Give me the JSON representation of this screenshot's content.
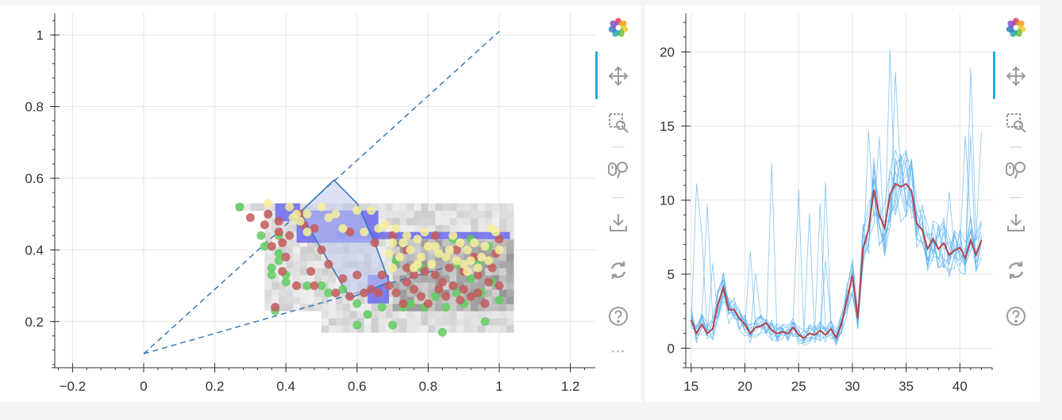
{
  "colors": {
    "grid": "#e5e5e5",
    "axis": "#333333",
    "dashed": "#3c78b4",
    "polygon_fill": "#bfc9ee",
    "polygon_stroke": "#3c78b4",
    "raster_blue": "#6a6af0",
    "dot_green": "#62cc62",
    "dot_red": "#c35c5c",
    "dot_yellow": "#f6ee9a",
    "line_blue": "#59b1f0",
    "line_red": "#b2454d"
  },
  "toolbar_icons": [
    "bokeh-logo-icon",
    "pan-icon",
    "box-zoom-icon",
    "wheel-zoom-icon",
    "save-icon",
    "reset-icon",
    "help-icon"
  ],
  "toolbar_more": "⋯",
  "chart_data": [
    {
      "type": "scatter",
      "title": "",
      "xlabel": "",
      "ylabel": "",
      "xlim": [
        -0.25,
        1.27
      ],
      "ylim": [
        0.08,
        1.06
      ],
      "x_ticks": [
        -0.2,
        0,
        0.2,
        0.4,
        0.6,
        0.8,
        1,
        1.2
      ],
      "x_tick_labels": [
        "−0.2",
        "0",
        "0.2",
        "0.4",
        "0.6",
        "0.8",
        "1",
        "1.2"
      ],
      "y_ticks": [
        0.2,
        0.4,
        0.6,
        0.8,
        1
      ],
      "y_tick_labels": [
        "0.2",
        "0.4",
        "0.6",
        "0.8",
        "1"
      ],
      "grid": true,
      "dashed_lines": [
        {
          "x": [
            0,
            1
          ],
          "y": [
            0.11,
            1.01
          ]
        },
        {
          "x": [
            0,
            0.95
          ],
          "y": [
            0.11,
            0.38
          ]
        }
      ],
      "sector_polygon": {
        "x": [
          0.44,
          0.535,
          0.6,
          0.65,
          0.69,
          0.58
        ],
        "y": [
          0.505,
          0.595,
          0.53,
          0.42,
          0.31,
          0.265
        ]
      },
      "raster_blue_patches": [
        {
          "x": [
            0.37,
            0.44
          ],
          "y": [
            0.48,
            0.53
          ]
        },
        {
          "x": [
            0.43,
            0.66
          ],
          "y": [
            0.42,
            0.51
          ]
        },
        {
          "x": [
            0.54,
            1.03
          ],
          "y": [
            0.43,
            0.45
          ]
        },
        {
          "x": [
            0.63,
            0.69
          ],
          "y": [
            0.25,
            0.33
          ]
        }
      ],
      "raster_gray_extent": {
        "x": [
          0.26,
          1.03
        ],
        "y": [
          0.17,
          0.53
        ]
      },
      "point_series": [
        {
          "color": "green",
          "points": [
            [
              0.27,
              0.52
            ],
            [
              0.33,
              0.44
            ],
            [
              0.34,
              0.41
            ],
            [
              0.36,
              0.33
            ],
            [
              0.36,
              0.35
            ],
            [
              0.38,
              0.44
            ],
            [
              0.38,
              0.39
            ],
            [
              0.38,
              0.37
            ],
            [
              0.37,
              0.23
            ],
            [
              0.4,
              0.33
            ],
            [
              0.4,
              0.31
            ],
            [
              0.46,
              0.3
            ],
            [
              0.5,
              0.3
            ],
            [
              0.52,
              0.28
            ],
            [
              0.56,
              0.29
            ],
            [
              0.6,
              0.25
            ],
            [
              0.6,
              0.19
            ],
            [
              0.63,
              0.22
            ],
            [
              0.67,
              0.24
            ],
            [
              0.7,
              0.19
            ],
            [
              0.71,
              0.37
            ],
            [
              0.73,
              0.24
            ],
            [
              0.75,
              0.25
            ],
            [
              0.78,
              0.35
            ],
            [
              0.79,
              0.24
            ],
            [
              0.82,
              0.27
            ],
            [
              0.84,
              0.17
            ],
            [
              0.85,
              0.24
            ],
            [
              0.87,
              0.43
            ],
            [
              0.88,
              0.36
            ],
            [
              0.9,
              0.25
            ],
            [
              0.92,
              0.43
            ],
            [
              0.94,
              0.36
            ],
            [
              0.95,
              0.28
            ],
            [
              0.97,
              0.41
            ],
            [
              1.0,
              0.26
            ],
            [
              0.98,
              0.31
            ],
            [
              0.96,
              0.2
            ],
            [
              0.92,
              0.32
            ],
            [
              0.88,
              0.28
            ]
          ]
        },
        {
          "color": "red",
          "points": [
            [
              0.34,
              0.47
            ],
            [
              0.35,
              0.5
            ],
            [
              0.38,
              0.48
            ],
            [
              0.38,
              0.45
            ],
            [
              0.36,
              0.41
            ],
            [
              0.39,
              0.34
            ],
            [
              0.4,
              0.38
            ],
            [
              0.41,
              0.44
            ],
            [
              0.43,
              0.3
            ],
            [
              0.45,
              0.47
            ],
            [
              0.47,
              0.34
            ],
            [
              0.48,
              0.46
            ],
            [
              0.48,
              0.3
            ],
            [
              0.52,
              0.36
            ],
            [
              0.54,
              0.28
            ],
            [
              0.56,
              0.32
            ],
            [
              0.58,
              0.45
            ],
            [
              0.58,
              0.27
            ],
            [
              0.6,
              0.33
            ],
            [
              0.62,
              0.28
            ],
            [
              0.64,
              0.29
            ],
            [
              0.66,
              0.28
            ],
            [
              0.67,
              0.33
            ],
            [
              0.69,
              0.3
            ],
            [
              0.7,
              0.44
            ],
            [
              0.71,
              0.28
            ],
            [
              0.73,
              0.25
            ],
            [
              0.74,
              0.4
            ],
            [
              0.74,
              0.31
            ],
            [
              0.76,
              0.29
            ],
            [
              0.78,
              0.27
            ],
            [
              0.79,
              0.34
            ],
            [
              0.8,
              0.25
            ],
            [
              0.82,
              0.33
            ],
            [
              0.83,
              0.29
            ],
            [
              0.85,
              0.27
            ],
            [
              0.86,
              0.35
            ],
            [
              0.87,
              0.3
            ],
            [
              0.89,
              0.26
            ],
            [
              0.9,
              0.34
            ],
            [
              0.9,
              0.29
            ],
            [
              0.92,
              0.27
            ],
            [
              0.94,
              0.33
            ],
            [
              0.94,
              0.28
            ],
            [
              0.96,
              0.25
            ],
            [
              0.98,
              0.35
            ],
            [
              0.99,
              0.39
            ],
            [
              1.0,
              0.43
            ],
            [
              1.0,
              0.3
            ],
            [
              0.97,
              0.31
            ],
            [
              0.3,
              0.49
            ],
            [
              0.37,
              0.24
            ],
            [
              0.39,
              0.42
            ],
            [
              0.44,
              0.5
            ],
            [
              0.5,
              0.4
            ],
            [
              0.65,
              0.42
            ],
            [
              0.74,
              0.35
            ],
            [
              0.76,
              0.33
            ],
            [
              0.84,
              0.31
            ],
            [
              0.88,
              0.4
            ],
            [
              0.93,
              0.38
            ],
            [
              0.82,
              0.44
            ]
          ]
        },
        {
          "color": "yellow",
          "points": [
            [
              0.35,
              0.53
            ],
            [
              0.41,
              0.52
            ],
            [
              0.43,
              0.5
            ],
            [
              0.44,
              0.48
            ],
            [
              0.46,
              0.5
            ],
            [
              0.5,
              0.52
            ],
            [
              0.52,
              0.49
            ],
            [
              0.54,
              0.5
            ],
            [
              0.56,
              0.46
            ],
            [
              0.6,
              0.51
            ],
            [
              0.62,
              0.45
            ],
            [
              0.64,
              0.51
            ],
            [
              0.66,
              0.46
            ],
            [
              0.68,
              0.47
            ],
            [
              0.7,
              0.42
            ],
            [
              0.71,
              0.46
            ],
            [
              0.72,
              0.38
            ],
            [
              0.74,
              0.44
            ],
            [
              0.75,
              0.4
            ],
            [
              0.76,
              0.35
            ],
            [
              0.77,
              0.43
            ],
            [
              0.78,
              0.38
            ],
            [
              0.79,
              0.45
            ],
            [
              0.8,
              0.41
            ],
            [
              0.81,
              0.36
            ],
            [
              0.83,
              0.39
            ],
            [
              0.85,
              0.38
            ],
            [
              0.86,
              0.4
            ],
            [
              0.88,
              0.37
            ],
            [
              0.89,
              0.42
            ],
            [
              0.9,
              0.36
            ],
            [
              0.91,
              0.4
            ],
            [
              0.92,
              0.37
            ],
            [
              0.93,
              0.42
            ],
            [
              0.95,
              0.38
            ],
            [
              0.96,
              0.41
            ],
            [
              0.97,
              0.37
            ],
            [
              0.99,
              0.45
            ],
            [
              1.0,
              0.4
            ],
            [
              0.94,
              0.35
            ],
            [
              0.46,
              0.45
            ],
            [
              0.42,
              0.49
            ],
            [
              0.69,
              0.39
            ],
            [
              0.7,
              0.35
            ],
            [
              0.73,
              0.42
            ],
            [
              0.77,
              0.36
            ],
            [
              0.82,
              0.41
            ],
            [
              0.87,
              0.44
            ],
            [
              0.91,
              0.34
            ],
            [
              0.98,
              0.46
            ]
          ]
        }
      ]
    },
    {
      "type": "line",
      "title": "",
      "xlabel": "",
      "ylabel": "",
      "xlim": [
        14.5,
        43
      ],
      "ylim": [
        -1.1,
        22.6
      ],
      "x_ticks": [
        15,
        20,
        25,
        30,
        35,
        40
      ],
      "x_tick_labels": [
        "15",
        "20",
        "25",
        "30",
        "35",
        "40"
      ],
      "y_ticks": [
        0,
        5,
        10,
        15,
        20
      ],
      "y_tick_labels": [
        "0",
        "5",
        "10",
        "15",
        "20"
      ],
      "grid": true,
      "x": [
        15,
        15.5,
        16,
        16.5,
        17,
        17.5,
        18,
        18.5,
        19,
        19.5,
        20,
        20.5,
        21,
        21.5,
        22,
        22.5,
        23,
        23.5,
        24,
        24.5,
        25,
        25.5,
        26,
        26.5,
        27,
        27.5,
        28,
        28.5,
        29,
        29.5,
        30,
        30.5,
        31,
        31.5,
        32,
        32.5,
        33,
        33.5,
        34,
        34.5,
        35,
        35.5,
        36,
        36.5,
        37,
        37.5,
        38,
        38.5,
        39,
        39.5,
        40,
        40.5,
        41,
        41.5,
        42
      ],
      "mean_series": [
        1.9,
        1.0,
        1.6,
        1.0,
        1.3,
        3.0,
        4.1,
        2.6,
        2.6,
        2.0,
        1.6,
        1.0,
        1.4,
        1.5,
        1.7,
        1.2,
        1.0,
        1.1,
        1.0,
        1.4,
        0.9,
        0.7,
        1.0,
        0.9,
        1.2,
        0.9,
        1.3,
        0.7,
        1.7,
        3.3,
        4.9,
        2.0,
        6.8,
        8.0,
        10.7,
        9.0,
        8.1,
        10.4,
        11.1,
        10.9,
        11.1,
        10.6,
        8.4,
        8.0,
        6.7,
        7.4,
        6.7,
        7.1,
        6.3,
        6.6,
        6.8,
        6.1,
        7.3,
        6.3,
        7.3
      ],
      "member_count": 12
    }
  ]
}
